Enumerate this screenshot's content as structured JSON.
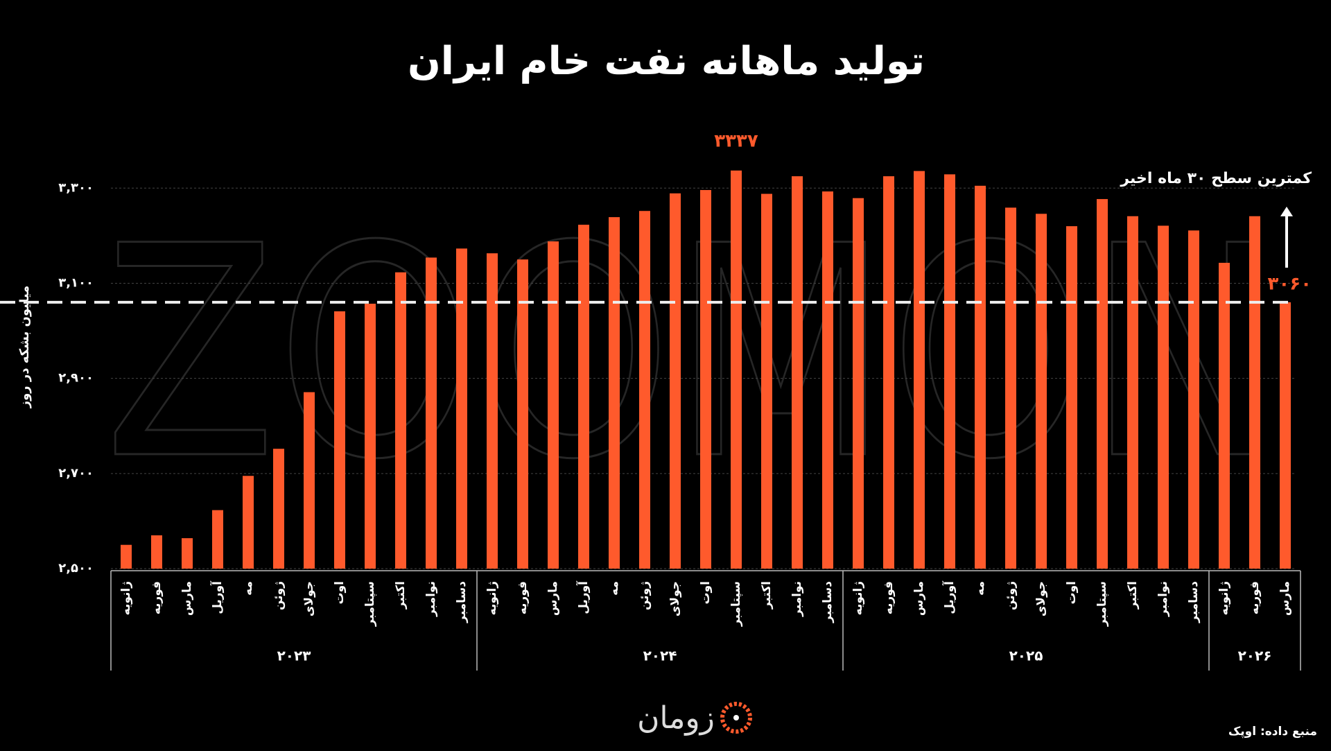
{
  "chart_data": {
    "type": "bar",
    "title": "تولید ماهانه نفت خام ایران",
    "y_label": "میلیون بشکه در روز",
    "watermark": "ZOOMON",
    "logo": "زومان",
    "source": "منبع داده: اوپک",
    "annotation": "کمترین سطح ۳۰ ماه اخیر",
    "color": "#ff5a2c",
    "groups": [
      {
        "label": "۲۰۲۳",
        "categories": [
          "ژانویه",
          "فوریه",
          "مارس",
          "آوریل",
          "مه",
          "ژوئن",
          "جولای",
          "اوت",
          "سپتامبر",
          "اکتبر",
          "نوامبر",
          "دسامبر"
        ]
      },
      {
        "label": "۲۰۲۴",
        "categories": [
          "ژانویه",
          "فوریه",
          "مارس",
          "آوریل",
          "مه",
          "ژوئن",
          "جولای",
          "اوت",
          "سپتامبر",
          "اکتبر",
          "نوامبر",
          "دسامبر"
        ]
      },
      {
        "label": "۲۰۲۵",
        "categories": [
          "ژانویه",
          "فوریه",
          "مارس",
          "آوریل",
          "مه",
          "ژوئن",
          "جولای",
          "اوت",
          "سپتامبر",
          "اکتبر",
          "نوامبر",
          "دسامبر"
        ]
      },
      {
        "label": "۲۰۲۶",
        "categories": [
          "ژانویه",
          "فوریه",
          "مارس"
        ]
      }
    ],
    "values": [
      2550,
      2570,
      2564,
      2623,
      2695,
      2752,
      2871,
      3041,
      3057,
      3123,
      3154,
      3173,
      3163,
      3150,
      3188,
      3223,
      3239,
      3252,
      3289,
      3296,
      3337,
      3288,
      3325,
      3293,
      3279,
      3325,
      3336,
      3329,
      3305,
      3259,
      3246,
      3220,
      3277,
      3241,
      3221,
      3211,
      3143,
      3241,
      3060
    ],
    "value_labels": [
      null,
      null,
      null,
      null,
      null,
      null,
      null,
      null,
      null,
      null,
      null,
      null,
      null,
      null,
      null,
      null,
      null,
      null,
      null,
      null,
      "۳۳۳۷",
      null,
      null,
      null,
      null,
      null,
      null,
      null,
      null,
      null,
      null,
      null,
      null,
      null,
      null,
      null,
      null,
      null,
      "۳۰۶۰"
    ],
    "ylim": [
      2500,
      3350
    ],
    "yticks": [
      {
        "value": 2500,
        "label": "۲,۵۰۰"
      },
      {
        "value": 2700,
        "label": "۲,۷۰۰"
      },
      {
        "value": 2900,
        "label": "۲,۹۰۰"
      },
      {
        "value": 3100,
        "label": "۳,۱۰۰"
      },
      {
        "value": 3300,
        "label": "۳,۳۰۰"
      }
    ],
    "grid": true
  }
}
